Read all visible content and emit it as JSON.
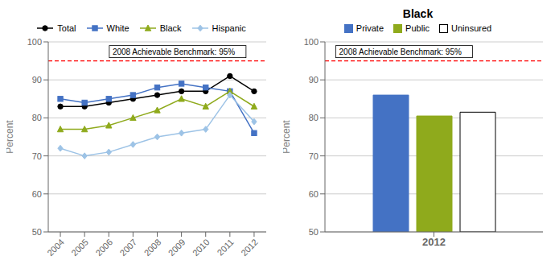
{
  "chart_data": [
    {
      "type": "line",
      "x": [
        2004,
        2005,
        2006,
        2007,
        2008,
        2009,
        2010,
        2011,
        2012
      ],
      "xlim": [
        2003.5,
        2012.5
      ],
      "xticks": [
        2004,
        2005,
        2006,
        2007,
        2008,
        2009,
        2010,
        2011,
        2012
      ],
      "ylim": [
        50,
        100
      ],
      "yticks": [
        50,
        60,
        70,
        80,
        90,
        100
      ],
      "ylabel": "Percent",
      "grid": true,
      "legend": "top",
      "series": [
        {
          "name": "Total",
          "color": "#000000",
          "marker": "circle",
          "values": [
            83,
            83,
            84,
            85,
            86,
            87,
            87,
            91,
            87
          ]
        },
        {
          "name": "White",
          "color": "#4472c4",
          "marker": "square",
          "values": [
            85,
            84,
            85,
            86,
            88,
            89,
            88,
            87,
            76
          ]
        },
        {
          "name": "Black",
          "color": "#8faa1c",
          "marker": "triangle",
          "values": [
            77,
            77,
            78,
            80,
            82,
            85,
            83,
            87,
            83
          ]
        },
        {
          "name": "Hispanic",
          "color": "#9dc3e6",
          "marker": "diamond",
          "values": [
            72,
            70,
            71,
            73,
            75,
            76,
            77,
            86,
            79
          ]
        }
      ],
      "annotations": [
        {
          "text": "2008 Achievable Benchmark: 95%",
          "y": 95,
          "color": "#ff0000",
          "line_style": "dashed"
        }
      ]
    },
    {
      "type": "bar",
      "title": "Black",
      "categories": [
        "2012"
      ],
      "ylim": [
        50,
        100
      ],
      "yticks": [
        50,
        60,
        70,
        80,
        90,
        100
      ],
      "ylabel": "Percent",
      "grid": true,
      "legend": "top",
      "series": [
        {
          "name": "Private",
          "color": "#4472c4",
          "values": [
            86
          ]
        },
        {
          "name": "Public",
          "color": "#8faa1c",
          "values": [
            80.5
          ]
        },
        {
          "name": "Uninsured",
          "color": "#ffffff",
          "values": [
            81.5
          ]
        }
      ],
      "annotations": [
        {
          "text": "2008 Achievable Benchmark: 95%",
          "y": 95,
          "color": "#ff0000",
          "line_style": "dashed"
        }
      ]
    }
  ]
}
